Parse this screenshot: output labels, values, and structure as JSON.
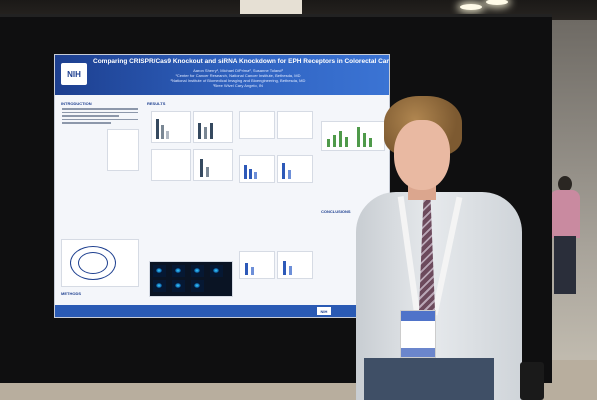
{
  "poster": {
    "logo_text": "NIH",
    "title": "Comparing CRISPR/Cas9 Knockout and siRNA Knockdown for EPH Receptors in Colorectal Cancer Cell Lines",
    "authors": "Aaron Sherry¹, Michael DiPrima², Susanne Toland³",
    "affiliation_1": "¹Center for Cancer Research, National Cancer Institute, Bethesda, MD",
    "affiliation_2": "²National Institute of Biomedical Imaging and Bioengineering, Bethesda, MD",
    "affiliation_3": "³Bree Wivel Cary Angelo, IN",
    "sections": {
      "introduction": "INTRODUCTION",
      "results": "RESULTS",
      "methods": "METHODS",
      "conclusions": "CONCLUSIONS"
    },
    "footer_logo_text": "NIH"
  },
  "colors": {
    "poster_header": "#2f62c0",
    "board": "#0f0f10",
    "shirt": "#e6e9ec",
    "badge_accent": "#4f73c9"
  }
}
